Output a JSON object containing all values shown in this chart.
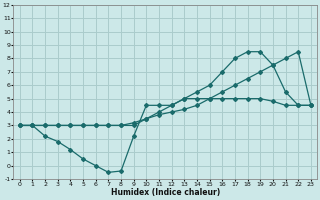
{
  "xlabel": "Humidex (Indice chaleur)",
  "background_color": "#cce8e8",
  "grid_color": "#aacccc",
  "line_color": "#1a6b6b",
  "xlim": [
    -0.5,
    23.5
  ],
  "ylim": [
    -1,
    12
  ],
  "xticks": [
    0,
    1,
    2,
    3,
    4,
    5,
    6,
    7,
    8,
    9,
    10,
    11,
    12,
    13,
    14,
    15,
    16,
    17,
    18,
    19,
    20,
    21,
    22,
    23
  ],
  "yticks": [
    -1,
    0,
    1,
    2,
    3,
    4,
    5,
    6,
    7,
    8,
    9,
    10,
    11,
    12
  ],
  "line1_x": [
    0,
    1,
    2,
    3,
    4,
    5,
    6,
    7,
    8,
    9,
    10,
    11,
    12,
    13,
    14,
    15,
    16,
    17,
    18,
    19,
    20,
    21,
    22,
    23
  ],
  "line1_y": [
    3,
    3,
    2.2,
    1.8,
    1.2,
    0.5,
    0,
    -0.5,
    -0.4,
    2.2,
    4.5,
    4.5,
    4.5,
    5,
    5,
    5,
    5,
    5,
    5,
    5,
    4.8,
    4.5,
    4.5,
    4.5
  ],
  "line2_x": [
    0,
    1,
    2,
    3,
    4,
    5,
    6,
    7,
    8,
    9,
    10,
    11,
    12,
    13,
    14,
    15,
    16,
    17,
    18,
    19,
    20,
    21,
    22,
    23
  ],
  "line2_y": [
    3.0,
    3.0,
    3.0,
    3.0,
    3.0,
    3.0,
    3.0,
    3.0,
    3.0,
    3.2,
    3.5,
    3.8,
    4.0,
    4.2,
    4.5,
    5.0,
    5.5,
    6.0,
    6.5,
    7.0,
    7.5,
    8.0,
    8.5,
    4.5
  ],
  "line3_x": [
    0,
    1,
    2,
    3,
    4,
    5,
    6,
    7,
    8,
    9,
    10,
    11,
    12,
    13,
    14,
    15,
    16,
    17,
    18,
    19,
    20,
    21,
    22,
    23
  ],
  "line3_y": [
    3.0,
    3.0,
    3.0,
    3.0,
    3.0,
    3.0,
    3.0,
    3.0,
    3.0,
    3.0,
    3.5,
    4.0,
    4.5,
    5.0,
    5.5,
    6.0,
    7.0,
    8.0,
    8.5,
    8.5,
    7.5,
    5.5,
    4.5,
    4.5
  ]
}
